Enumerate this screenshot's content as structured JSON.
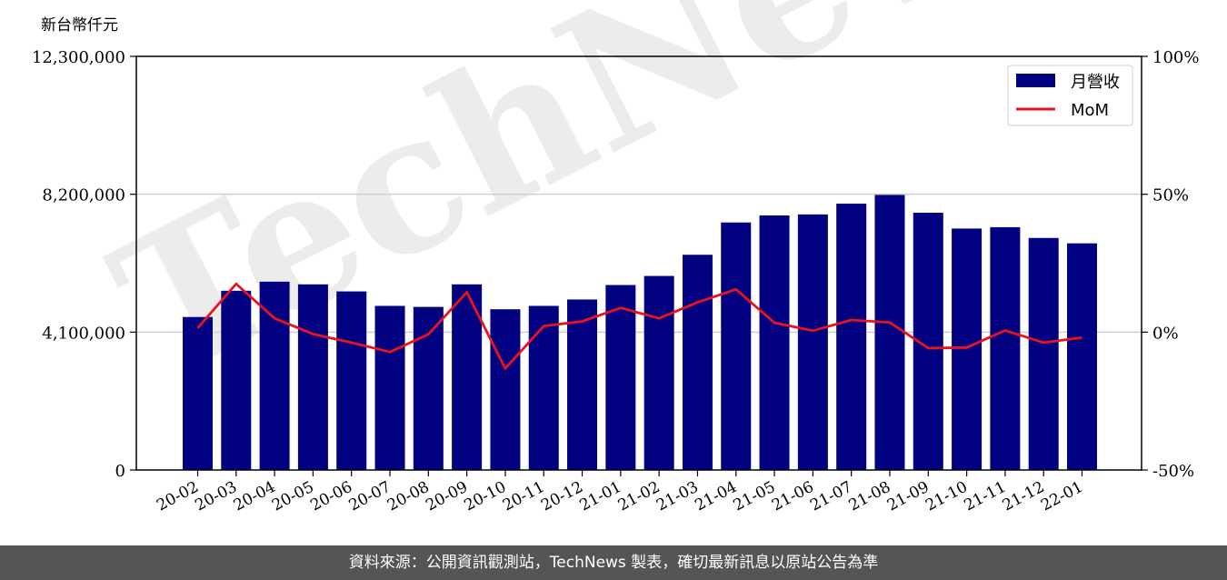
{
  "chart_data": {
    "type": "bar",
    "y_unit_label": "新台幣仟元",
    "categories": [
      "20-02",
      "20-03",
      "20-04",
      "20-05",
      "20-06",
      "20-07",
      "20-08",
      "20-09",
      "20-10",
      "20-11",
      "20-12",
      "21-01",
      "21-02",
      "21-03",
      "21-04",
      "21-05",
      "21-06",
      "21-07",
      "21-08",
      "21-09",
      "21-10",
      "21-11",
      "21-12",
      "22-01"
    ],
    "series": [
      {
        "name": "月營收",
        "kind": "bar",
        "axis": "left",
        "color": "#000080",
        "values": [
          4550000,
          5330000,
          5600000,
          5520000,
          5310000,
          4880000,
          4850000,
          5520000,
          4780000,
          4880000,
          5070000,
          5500000,
          5770000,
          6400000,
          7360000,
          7570000,
          7600000,
          7920000,
          8180000,
          7650000,
          7180000,
          7220000,
          6900000,
          6740000
        ]
      },
      {
        "name": "MoM",
        "kind": "line",
        "axis": "right",
        "color": "#e8131c",
        "values": [
          1.5,
          17.5,
          5.0,
          -0.7,
          -3.8,
          -7.2,
          -0.8,
          14.5,
          -13.2,
          2.2,
          3.9,
          8.8,
          5.0,
          10.8,
          15.5,
          3.4,
          0.5,
          4.4,
          3.5,
          -5.8,
          -5.6,
          0.6,
          -3.8,
          -2.0
        ]
      }
    ],
    "y_left": {
      "ylim": [
        0,
        12300000
      ],
      "ticks": [
        "0",
        "4,100,000",
        "8,200,000",
        "12,300,000"
      ],
      "tick_values": [
        0,
        4100000,
        8200000,
        12300000
      ]
    },
    "y_right": {
      "ylim": [
        -50,
        100
      ],
      "ticks": [
        "-50%",
        "0%",
        "50%",
        "100%"
      ],
      "tick_values": [
        -50,
        0,
        50,
        100
      ]
    },
    "grid": "horizontal at left-axis ticks",
    "legend": {
      "position": "top-right",
      "entries": [
        "月營收",
        "MoM"
      ]
    },
    "watermark": "TechNews"
  },
  "footer": {
    "text": "資料來源：公開資訊觀測站，TechNews 製表，確切最新訊息以原站公告為準"
  }
}
